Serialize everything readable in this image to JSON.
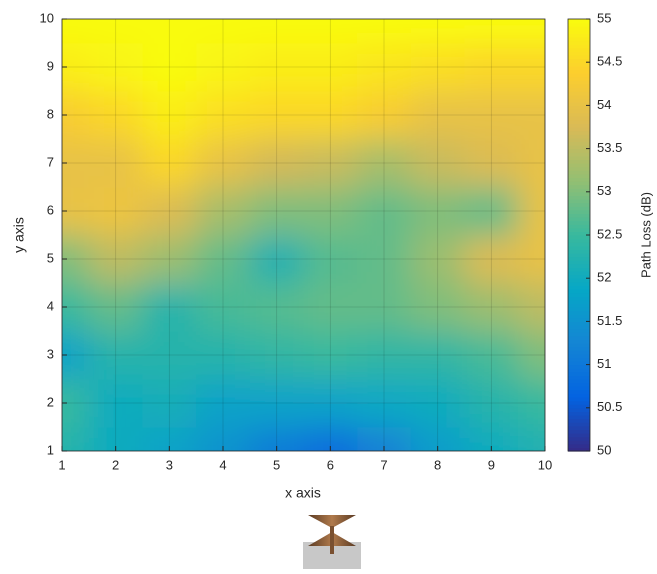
{
  "chart_data": {
    "type": "heatmap",
    "x_label": "x axis",
    "y_label": "y axis",
    "colorbar_label": "Path Loss (dB)",
    "x": [
      1,
      2,
      3,
      4,
      5,
      6,
      7,
      8,
      9,
      10
    ],
    "y": [
      1,
      2,
      3,
      4,
      5,
      6,
      7,
      8,
      9,
      10
    ],
    "z": [
      [
        52.3,
        52.0,
        51.8,
        51.5,
        51.1,
        50.8,
        51.2,
        51.7,
        52.0,
        52.2
      ],
      [
        52.5,
        52.0,
        52.1,
        51.8,
        51.8,
        51.8,
        51.9,
        52.0,
        52.3,
        52.5
      ],
      [
        51.8,
        52.3,
        52.3,
        52.3,
        52.4,
        52.5,
        52.4,
        52.4,
        52.6,
        53.0
      ],
      [
        52.5,
        52.8,
        52.3,
        52.6,
        52.7,
        52.8,
        52.8,
        53.0,
        53.2,
        53.5
      ],
      [
        53.0,
        53.5,
        53.2,
        52.8,
        52.2,
        52.7,
        52.8,
        53.2,
        53.8,
        54.0
      ],
      [
        54.0,
        54.1,
        53.8,
        53.3,
        53.0,
        53.0,
        52.8,
        53.0,
        52.8,
        54.0
      ],
      [
        54.0,
        54.0,
        54.5,
        54.0,
        53.7,
        53.6,
        53.3,
        53.6,
        53.8,
        54.0
      ],
      [
        54.3,
        54.5,
        54.8,
        54.6,
        54.5,
        54.5,
        54.3,
        54.0,
        54.0,
        54.0
      ],
      [
        54.8,
        54.9,
        55.0,
        54.9,
        54.8,
        54.8,
        54.7,
        54.6,
        54.5,
        54.5
      ],
      [
        55.0,
        55.0,
        55.0,
        55.0,
        55.0,
        55.0,
        55.0,
        55.0,
        55.0,
        55.0
      ]
    ],
    "xlim": [
      1,
      10
    ],
    "xticks": [
      1,
      2,
      3,
      4,
      5,
      6,
      7,
      8,
      9,
      10
    ],
    "ylim": [
      1,
      10
    ],
    "yticks": [
      1,
      2,
      3,
      4,
      5,
      6,
      7,
      8,
      9,
      10
    ],
    "clim": [
      50,
      55
    ],
    "cticks": [
      50,
      50.5,
      51,
      51.5,
      52,
      52.5,
      53,
      53.5,
      54,
      54.5,
      55
    ],
    "colormap": [
      "#352a87",
      "#0363e1",
      "#1485d4",
      "#06a7c6",
      "#38b99e",
      "#92bf73",
      "#d9ba56",
      "#fcce2e",
      "#f9fb0e"
    ],
    "grid": true
  }
}
